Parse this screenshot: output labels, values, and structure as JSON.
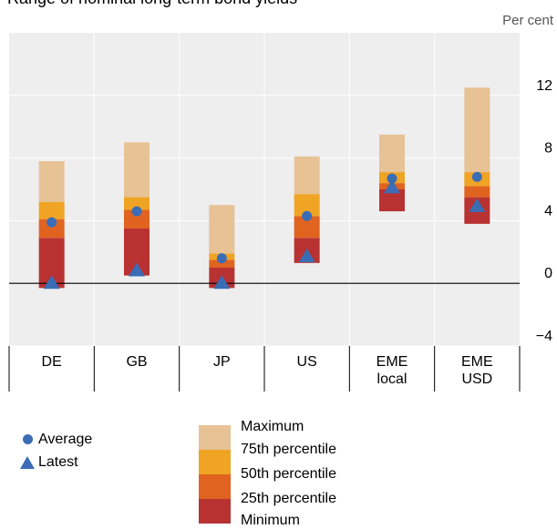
{
  "title_fragment": "Range of nominal long-term bond yields",
  "unit_label": "Per cent",
  "colors": {
    "plot_bg": "#eeeeee",
    "grid": "#ffffff",
    "zero_line": "#000000",
    "max": "#e7c295",
    "p75": "#f0a424",
    "p50": "#e06320",
    "p25": "#b83232",
    "marker": "#3a6db5"
  },
  "chart_data": {
    "type": "bar",
    "subtype": "floating-range",
    "ylim": [
      -4,
      16
    ],
    "yticks": [
      -4,
      0,
      4,
      8,
      12
    ],
    "y_axis_side": "right",
    "grid": true,
    "categories": [
      "DE",
      "GB",
      "JP",
      "US",
      "EME\nlocal",
      "EME\nUSD"
    ],
    "series": [
      {
        "name": "Minimum",
        "values": [
          -0.3,
          0.5,
          -0.3,
          1.3,
          4.6,
          3.8
        ]
      },
      {
        "name": "25th percentile",
        "values": [
          2.9,
          3.5,
          1.0,
          2.9,
          6.0,
          5.5
        ]
      },
      {
        "name": "50th percentile",
        "values": [
          4.1,
          4.7,
          1.5,
          4.3,
          6.4,
          6.2
        ]
      },
      {
        "name": "75th percentile",
        "values": [
          5.2,
          5.5,
          1.9,
          5.7,
          7.1,
          7.1
        ]
      },
      {
        "name": "Maximum",
        "values": [
          7.8,
          9.0,
          5.0,
          8.1,
          9.5,
          12.5
        ]
      },
      {
        "name": "Average",
        "values": [
          3.9,
          4.6,
          1.6,
          4.3,
          6.7,
          6.8
        ]
      },
      {
        "name": "Latest",
        "values": [
          0.0,
          0.8,
          0.0,
          1.7,
          6.1,
          4.9
        ]
      }
    ]
  },
  "legend": {
    "average": "Average",
    "latest": "Latest",
    "maximum": "Maximum",
    "p75": "75th percentile",
    "p50": "50th percentile",
    "p25": "25th percentile",
    "minimum": "Minimum"
  }
}
